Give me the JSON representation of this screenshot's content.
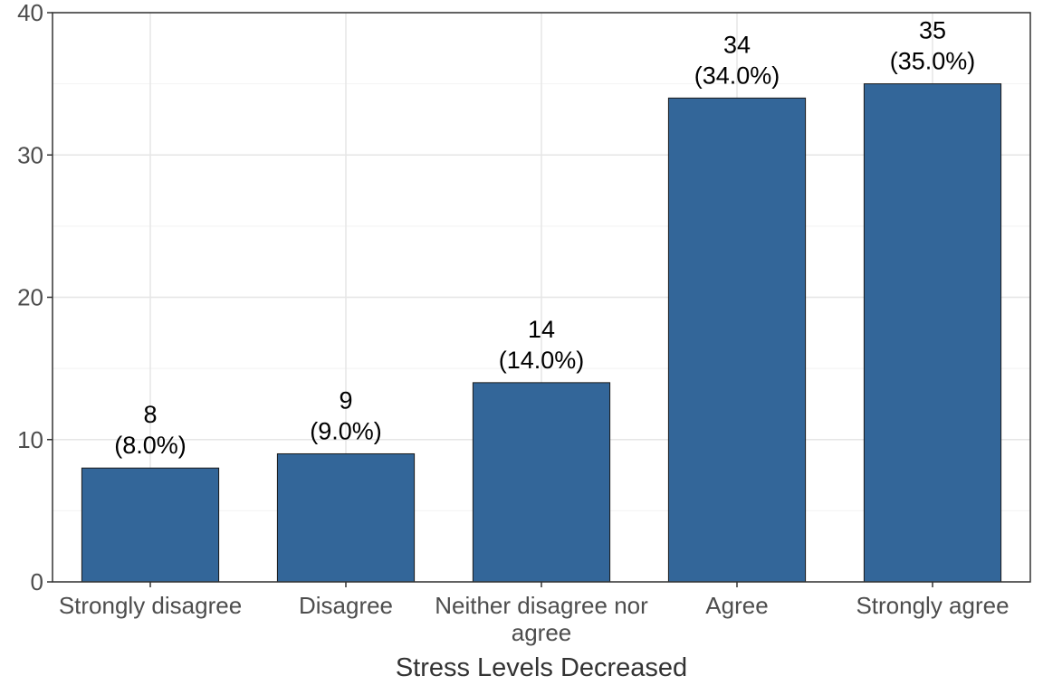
{
  "chart_data": {
    "type": "bar",
    "categories": [
      "Strongly disagree",
      "Disagree",
      "Neither disagree nor agree",
      "Agree",
      "Strongly agree"
    ],
    "category_label_lines": [
      [
        "Strongly disagree"
      ],
      [
        "Disagree"
      ],
      [
        "Neither disagree nor",
        "agree"
      ],
      [
        "Agree"
      ],
      [
        "Strongly agree"
      ]
    ],
    "values": [
      8,
      9,
      14,
      34,
      35
    ],
    "value_labels": [
      "8",
      "9",
      "14",
      "34",
      "35"
    ],
    "percent_labels": [
      "(8.0%)",
      "(9.0%)",
      "(14.0%)",
      "(34.0%)",
      "(35.0%)"
    ],
    "title": "",
    "xlabel": "Stress Levels Decreased",
    "ylabel": "",
    "ylim": [
      0,
      40
    ],
    "yticks": [
      0,
      10,
      20,
      30,
      40
    ],
    "ytick_labels": [
      "0",
      "10",
      "20",
      "30",
      "40"
    ],
    "grid": true,
    "legend": "none",
    "colors": {
      "bar_fill": "#336699",
      "bar_stroke": "#1a1a1a",
      "grid_major": "#e6e6e6",
      "grid_minor": "#f2f2f2",
      "panel_border": "#333333",
      "background": "#ffffff"
    }
  }
}
